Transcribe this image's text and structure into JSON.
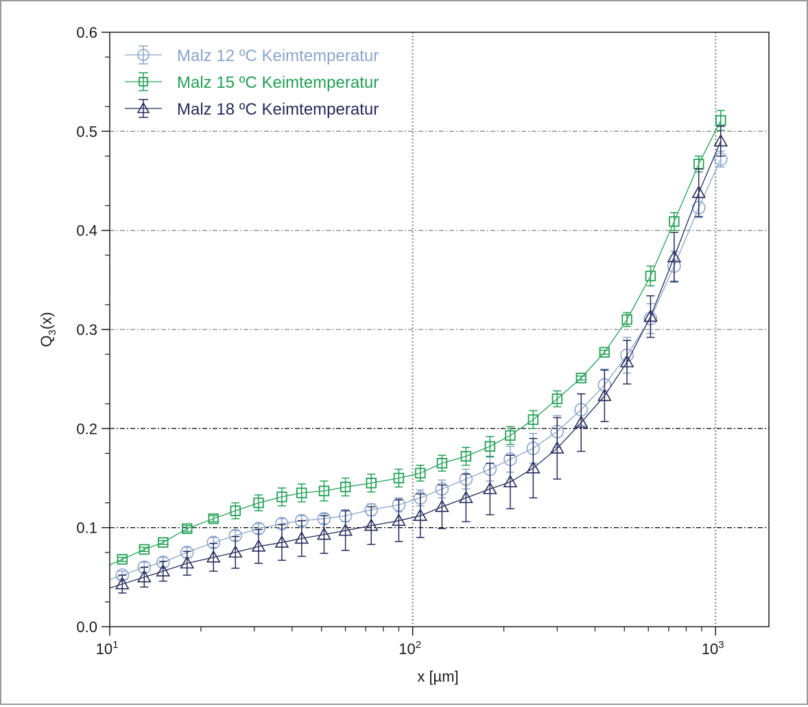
{
  "chart_data": {
    "type": "scatter",
    "xlabel": "x [µm]",
    "ylabel_main": "Q",
    "ylabel_sub": "3",
    "ylabel_tail": "(x)",
    "x_scale": "log",
    "xlim": [
      10,
      1500
    ],
    "ylim": [
      0,
      0.6
    ],
    "x_ticks": [
      {
        "value": 10,
        "base": "10",
        "exp": "1"
      },
      {
        "value": 100,
        "base": "10",
        "exp": "2"
      },
      {
        "value": 1000,
        "base": "10",
        "exp": "3"
      }
    ],
    "y_ticks": [
      {
        "value": 0,
        "label": "0.0"
      },
      {
        "value": 0.1,
        "label": "0.1"
      },
      {
        "value": 0.2,
        "label": "0.2"
      },
      {
        "value": 0.3,
        "label": "0.3"
      },
      {
        "value": 0.4,
        "label": "0.4"
      },
      {
        "value": 0.5,
        "label": "0.5"
      },
      {
        "value": 0.6,
        "label": "0.6"
      }
    ],
    "grid": {
      "vertical": [
        100,
        1000
      ],
      "horizontal_gray": [
        0.3,
        0.4,
        0.5
      ],
      "horizontal_black": [
        0.1,
        0.2
      ]
    },
    "legend_position": "top-left",
    "x": [
      11,
      13,
      15,
      18,
      22,
      26,
      31,
      37,
      43,
      51,
      60,
      73,
      90,
      106,
      125,
      150,
      180,
      210,
      250,
      300,
      360,
      430,
      510,
      610,
      730,
      880,
      1040
    ],
    "series": [
      {
        "name": "Malz 12 ºC Keimtemperatur",
        "marker": "circle",
        "color": "#8aa5c9",
        "y": [
          0.052,
          0.06,
          0.065,
          0.075,
          0.085,
          0.092,
          0.099,
          0.104,
          0.107,
          0.109,
          0.112,
          0.118,
          0.123,
          0.13,
          0.139,
          0.149,
          0.159,
          0.169,
          0.18,
          0.197,
          0.219,
          0.244,
          0.274,
          0.311,
          0.364,
          0.423,
          0.472
        ],
        "err": [
          0.004,
          0.005,
          0.005,
          0.005,
          0.005,
          0.005,
          0.005,
          0.005,
          0.005,
          0.005,
          0.006,
          0.006,
          0.007,
          0.008,
          0.009,
          0.01,
          0.012,
          0.013,
          0.015,
          0.016,
          0.016,
          0.016,
          0.018,
          0.015,
          0.015,
          0.01,
          0.008
        ]
      },
      {
        "name": "Malz 15 ºC Keimtemperatur",
        "marker": "square",
        "color": "#22a055",
        "y": [
          0.068,
          0.078,
          0.085,
          0.099,
          0.109,
          0.117,
          0.125,
          0.131,
          0.135,
          0.137,
          0.141,
          0.145,
          0.15,
          0.155,
          0.165,
          0.172,
          0.182,
          0.193,
          0.209,
          0.23,
          0.251,
          0.277,
          0.31,
          0.354,
          0.409,
          0.467,
          0.511
        ],
        "err": [
          0.002,
          0.002,
          0.002,
          0.003,
          0.003,
          0.008,
          0.008,
          0.009,
          0.009,
          0.01,
          0.009,
          0.009,
          0.009,
          0.008,
          0.008,
          0.009,
          0.01,
          0.009,
          0.009,
          0.008,
          0.002,
          0.002,
          0.007,
          0.01,
          0.009,
          0.008,
          0.01
        ]
      },
      {
        "name": "Malz 18 ºC Keimtemperatur",
        "marker": "triangle",
        "color": "#252a5a",
        "y": [
          0.043,
          0.05,
          0.056,
          0.064,
          0.07,
          0.075,
          0.081,
          0.085,
          0.089,
          0.093,
          0.097,
          0.102,
          0.107,
          0.112,
          0.121,
          0.13,
          0.139,
          0.146,
          0.16,
          0.18,
          0.206,
          0.233,
          0.267,
          0.313,
          0.373,
          0.438,
          0.49
        ],
        "err": [
          0.009,
          0.01,
          0.01,
          0.012,
          0.014,
          0.016,
          0.017,
          0.018,
          0.018,
          0.019,
          0.02,
          0.019,
          0.021,
          0.022,
          0.022,
          0.024,
          0.026,
          0.027,
          0.03,
          0.031,
          0.029,
          0.026,
          0.022,
          0.021,
          0.025,
          0.024,
          0.015
        ]
      }
    ]
  }
}
